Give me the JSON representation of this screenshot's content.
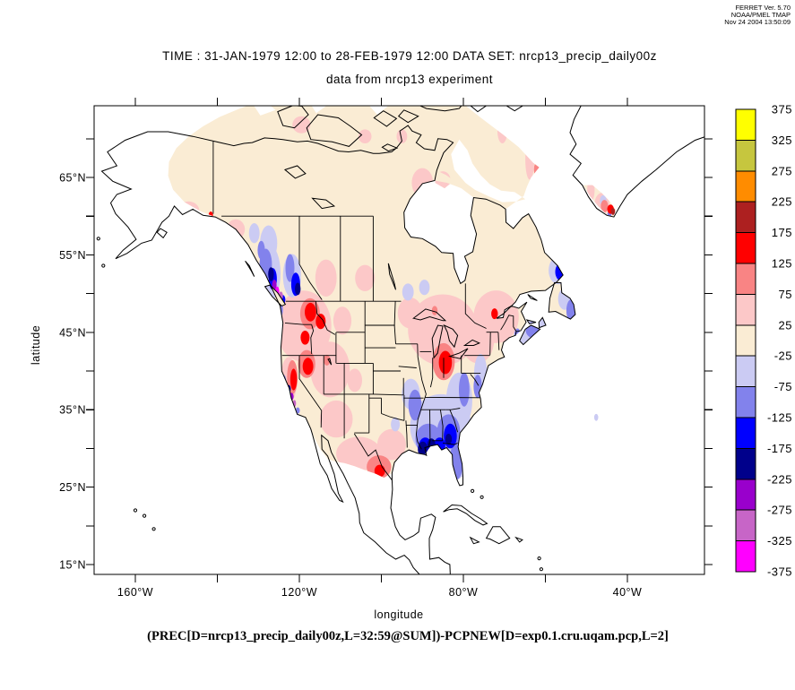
{
  "stamp": {
    "line1": "FERRET Ver. 5.70",
    "line2": "NOAA/PMEL TMAP",
    "line3": "Nov 24 2004 13:50:09"
  },
  "title": {
    "line1": "TIME : 31-JAN-1979 12:00 to 28-FEB-1979 12:00 DATA SET: nrcp13_precip_daily00z",
    "line2": "data from nrcp13 experiment"
  },
  "caption": "(PREC[D=nrcp13_precip_daily00z,L=32:59@SUM])-PCPNEW[D=exp0.1.cru.uqam.pcp,L=2]",
  "axes": {
    "x": {
      "label": "longitude",
      "ticks": [
        {
          "t": "160°W",
          "lon": -160
        },
        {
          "t": "120°W",
          "lon": -120
        },
        {
          "t": "80°W",
          "lon": -80
        },
        {
          "t": "40°W",
          "lon": -40
        }
      ],
      "minor_lons": [
        -140,
        -100,
        -60
      ]
    },
    "y": {
      "label": "latitude",
      "ticks": [
        {
          "t": "65°N",
          "lat": 65
        },
        {
          "t": "55°N",
          "lat": 55
        },
        {
          "t": "45°N",
          "lat": 45
        },
        {
          "t": "35°N",
          "lat": 35
        },
        {
          "t": "25°N",
          "lat": 25
        },
        {
          "t": "15°N",
          "lat": 15
        }
      ],
      "minor_lats": [
        70,
        60,
        50,
        40,
        30,
        20
      ]
    }
  },
  "chart_data": {
    "type": "heatmap",
    "subtype": "filled-contour map (model minus observed precipitation, Feb 1979 sum)",
    "map_extent": {
      "lon": [
        -170,
        -21.2
      ],
      "lat": [
        13.7,
        74.3
      ]
    },
    "grid": "lon/lat view of a polar-stereographic regional model domain; data over land cells only",
    "colorbar": {
      "boundary_labels": [
        "375",
        "325",
        "275",
        "225",
        "175",
        "125",
        "75",
        "25",
        "-25",
        "-75",
        "-125",
        "-175",
        "-225",
        "-275",
        "-325",
        "-375"
      ],
      "colors_top_to_bottom": [
        "#ffff00",
        "#c6c63e",
        "#ff8c00",
        "#ad2020",
        "#ff0000",
        "#f98484",
        "#fcc8c8",
        "#faecd4",
        "#cbcbf3",
        "#8282ec",
        "#0000ff",
        "#00008b",
        "#9900cc",
        "#c765c7",
        "#ff00ff"
      ],
      "level_step": 50
    },
    "anomaly_format": "[lon_deg, lat_deg, radius_lon_deg, radius_lat_deg, value]",
    "anomalies": [
      [
        -119,
        45.8,
        6.8,
        4.6,
        50
      ],
      [
        -112.5,
        40.2,
        4.8,
        3.6,
        50
      ],
      [
        -122.6,
        38.8,
        2.0,
        3.0,
        50
      ],
      [
        -111,
        33.8,
        4.0,
        2.4,
        50
      ],
      [
        -105.5,
        29.3,
        5.5,
        2.2,
        50
      ],
      [
        -97.5,
        30.5,
        3.5,
        2.0,
        50
      ],
      [
        -106.5,
        38.8,
        1.8,
        1.5,
        50
      ],
      [
        -109.5,
        46.5,
        2.2,
        1.8,
        50
      ],
      [
        -100.6,
        27.6,
        3.0,
        1.5,
        100
      ],
      [
        -100.4,
        27.1,
        1.3,
        0.8,
        150
      ],
      [
        -117.4,
        47.4,
        2.4,
        2.0,
        100
      ],
      [
        -117.3,
        47.6,
        1.4,
        1.2,
        150
      ],
      [
        -114.8,
        46.4,
        1.2,
        1.0,
        150
      ],
      [
        -118.6,
        44.3,
        1.1,
        0.9,
        150
      ],
      [
        -118.2,
        40.9,
        2.1,
        1.8,
        100
      ],
      [
        -117.9,
        40.6,
        1.3,
        1.1,
        150
      ],
      [
        -121.7,
        39.2,
        1.3,
        2.2,
        100
      ],
      [
        -121.4,
        38.9,
        0.8,
        1.4,
        150
      ],
      [
        -113.3,
        41.4,
        0.8,
        0.7,
        100
      ],
      [
        -135.5,
        58.3,
        2.2,
        1.3,
        50
      ],
      [
        -147,
        60.7,
        2.6,
        1.2,
        50
      ],
      [
        -149.8,
        61.3,
        1.4,
        0.9,
        50
      ],
      [
        -141.6,
        60.1,
        0.55,
        0.5,
        150
      ],
      [
        -147.5,
        60.9,
        0.6,
        0.5,
        -100
      ],
      [
        -113.5,
        52,
        2.6,
        2.4,
        50
      ],
      [
        -104,
        52,
        2.4,
        1.7,
        50
      ],
      [
        -85,
        45.3,
        8.5,
        4.6,
        50
      ],
      [
        -72,
        47,
        5.5,
        3.4,
        50
      ],
      [
        -76.5,
        44,
        4.0,
        3.0,
        50
      ],
      [
        -93,
        47.5,
        3.0,
        2.0,
        50
      ],
      [
        -84.8,
        41.2,
        2.7,
        2.4,
        100
      ],
      [
        -84.4,
        41.1,
        1.6,
        1.5,
        150
      ],
      [
        -72.4,
        47.4,
        0.8,
        0.7,
        150
      ],
      [
        -87,
        47.8,
        0.7,
        0.6,
        100
      ],
      [
        -90,
        64.3,
        2.6,
        1.9,
        50
      ],
      [
        -85,
        64.6,
        1.9,
        1.2,
        50
      ],
      [
        -63.8,
        67.3,
        1.1,
        2.6,
        50
      ],
      [
        -61.9,
        66,
        0.9,
        1.1,
        100
      ],
      [
        -70.5,
        71,
        1.2,
        1.6,
        50
      ],
      [
        -95,
        70.3,
        1.3,
        0.9,
        50
      ],
      [
        -119.5,
        71.8,
        2.2,
        1.1,
        50
      ],
      [
        -104,
        70.3,
        1.6,
        0.9,
        50
      ],
      [
        -48.9,
        63.4,
        0.9,
        1.5,
        50
      ],
      [
        -46.2,
        61.6,
        1.8,
        1.4,
        50
      ],
      [
        -45.6,
        61.3,
        0.9,
        0.8,
        100
      ],
      [
        -44.1,
        60.9,
        0.8,
        0.6,
        150
      ],
      [
        -43.5,
        60.6,
        0.5,
        0.45,
        200
      ],
      [
        -45.9,
        62,
        0.8,
        0.7,
        -50
      ],
      [
        -44.4,
        60.2,
        0.5,
        0.4,
        -100
      ],
      [
        -127.2,
        52.6,
        2.6,
        3.6,
        -50
      ],
      [
        -128.2,
        53.8,
        1.5,
        2.0,
        -100
      ],
      [
        -126.5,
        51.9,
        1.0,
        1.4,
        -150
      ],
      [
        -126.9,
        52.5,
        0.7,
        0.9,
        -200
      ],
      [
        -126.1,
        51.1,
        0.55,
        0.7,
        -250
      ],
      [
        -125.4,
        50.3,
        0.5,
        0.6,
        -350
      ],
      [
        -124.5,
        49.7,
        0.5,
        0.55,
        -300
      ],
      [
        -124,
        49.2,
        0.6,
        0.6,
        -150
      ],
      [
        -121.8,
        52.3,
        2.2,
        2.8,
        -50
      ],
      [
        -122.3,
        53.3,
        1.1,
        1.8,
        -100
      ],
      [
        -120.9,
        51.2,
        1.1,
        1.5,
        -150
      ],
      [
        -120.4,
        50.6,
        0.7,
        0.8,
        -200
      ],
      [
        -127.5,
        56.5,
        2.1,
        2.3,
        -50
      ],
      [
        -129.3,
        55.6,
        0.9,
        1.2,
        -100
      ],
      [
        -131,
        57.8,
        1.3,
        1.3,
        -50
      ],
      [
        -124.6,
        47.9,
        0.6,
        0.9,
        -100
      ],
      [
        -123.9,
        38.6,
        0.7,
        0.9,
        -100
      ],
      [
        -122.6,
        37.7,
        0.5,
        0.5,
        -200
      ],
      [
        -121.9,
        36.7,
        0.5,
        0.5,
        -250
      ],
      [
        -121.2,
        35.8,
        0.4,
        0.45,
        -300
      ],
      [
        -120.4,
        34.9,
        0.5,
        0.4,
        -100
      ],
      [
        -85.5,
        32.8,
        7.5,
        4.2,
        -50
      ],
      [
        -88.5,
        31.2,
        3.2,
        2.0,
        -100
      ],
      [
        -83.6,
        32.2,
        2.8,
        2.2,
        -100
      ],
      [
        -89.3,
        30.3,
        1.6,
        1.1,
        -150
      ],
      [
        -89.9,
        29.9,
        1.2,
        1.0,
        -200
      ],
      [
        -83.2,
        31.6,
        1.6,
        1.6,
        -150
      ],
      [
        -83.6,
        31.2,
        0.8,
        0.7,
        -200
      ],
      [
        -81,
        36.2,
        3.2,
        3.6,
        -50
      ],
      [
        -79.8,
        37.6,
        1.3,
        2.2,
        -100
      ],
      [
        -75.8,
        39.6,
        1.6,
        2.6,
        -50
      ],
      [
        -76.5,
        38,
        1.0,
        1.5,
        -100
      ],
      [
        -81.6,
        28.6,
        1.6,
        2.6,
        -100
      ],
      [
        -80.9,
        27.2,
        1.0,
        1.6,
        -50
      ],
      [
        -85.8,
        30.4,
        1.4,
        1.0,
        -150
      ],
      [
        -87.8,
        30.5,
        1.0,
        0.8,
        -200
      ],
      [
        -91.8,
        35.6,
        1.6,
        2.0,
        -100
      ],
      [
        -92.8,
        37,
        2.2,
        2.0,
        -50
      ],
      [
        -96.6,
        33.1,
        1.1,
        0.9,
        -50
      ],
      [
        -56.8,
        53,
        2.4,
        1.8,
        -50
      ],
      [
        -56.3,
        52.8,
        1.3,
        1.1,
        -150
      ],
      [
        -55.3,
        49.3,
        1.6,
        1.4,
        -50
      ],
      [
        -53.6,
        47.8,
        1.3,
        1.5,
        -100
      ],
      [
        -63.2,
        45.3,
        1.6,
        1.0,
        -100
      ],
      [
        -66.8,
        44.6,
        0.8,
        0.9,
        -100
      ],
      [
        -64,
        45.5,
        1.0,
        1.2,
        -50
      ],
      [
        -93.5,
        50.2,
        1.4,
        1.1,
        -50
      ],
      [
        -89.5,
        50.8,
        1.3,
        1.0,
        -50
      ]
    ],
    "unclipped_specks": [
      [
        -47.6,
        34,
        0.5,
        0.45,
        -50
      ]
    ]
  }
}
